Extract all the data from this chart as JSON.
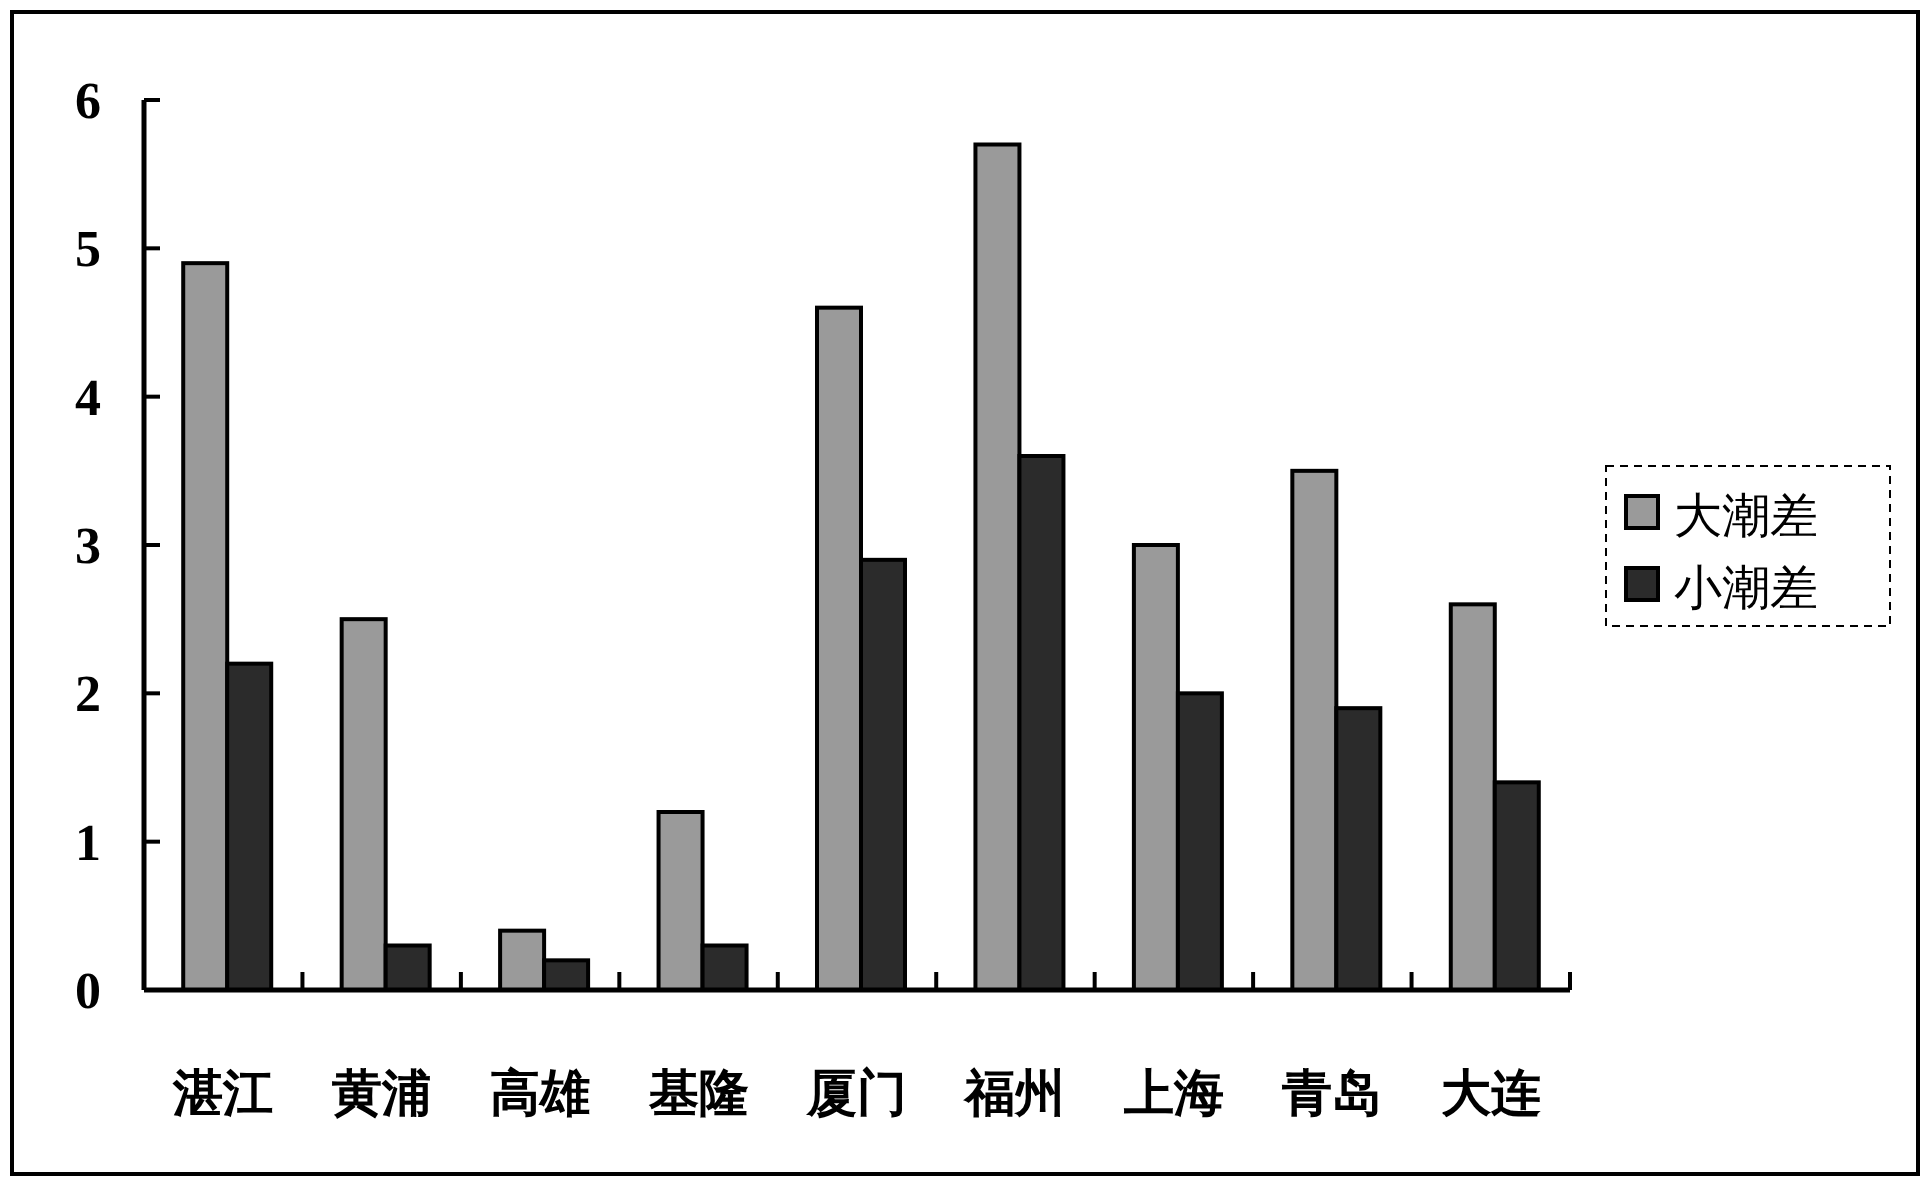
{
  "chart_data": {
    "type": "bar",
    "categories": [
      "湛江",
      "黄浦",
      "高雄",
      "基隆",
      "厦门",
      "福州",
      "上海",
      "青岛",
      "大连"
    ],
    "series": [
      {
        "name": "大潮差",
        "color": "#9a9a9a",
        "values": [
          4.9,
          2.5,
          0.4,
          1.2,
          4.6,
          5.7,
          3.0,
          3.5,
          2.6
        ]
      },
      {
        "name": "小潮差",
        "color": "#2b2b2b",
        "values": [
          2.2,
          0.3,
          0.2,
          0.3,
          2.9,
          3.6,
          2.0,
          1.9,
          1.4
        ]
      }
    ],
    "ylim": [
      0,
      6
    ],
    "yticks": [
      0,
      1,
      2,
      3,
      4,
      5,
      6
    ],
    "legend": "right"
  }
}
